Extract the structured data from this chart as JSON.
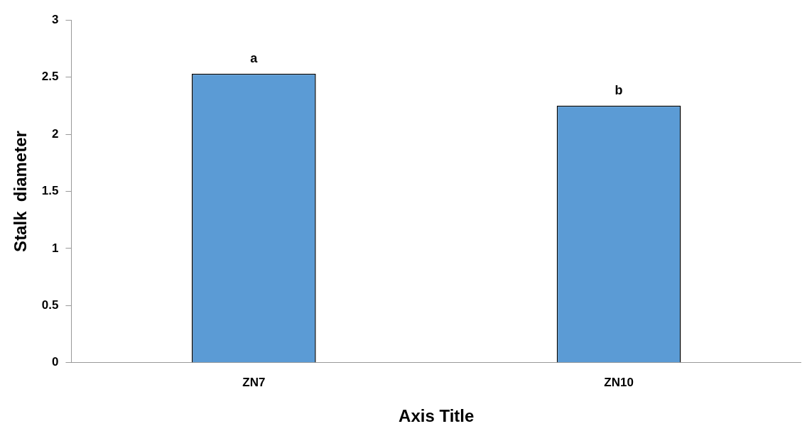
{
  "chart_data": {
    "type": "bar",
    "xlabel": "Axis Title",
    "ylabel": "Stalk  diameter",
    "categories": [
      "ZN7",
      "ZN10"
    ],
    "values": [
      2.53,
      2.25
    ],
    "color": "#5b9bd5",
    "ylim": [
      0,
      3
    ],
    "yticks": [
      0,
      0.5,
      1,
      1.5,
      2,
      2.5,
      3
    ],
    "grid": false,
    "legend": false,
    "annotations": [
      {
        "text": "a",
        "x": "ZN7",
        "y": 2.53
      },
      {
        "text": "b",
        "x": "ZN10",
        "y": 2.25
      }
    ]
  }
}
